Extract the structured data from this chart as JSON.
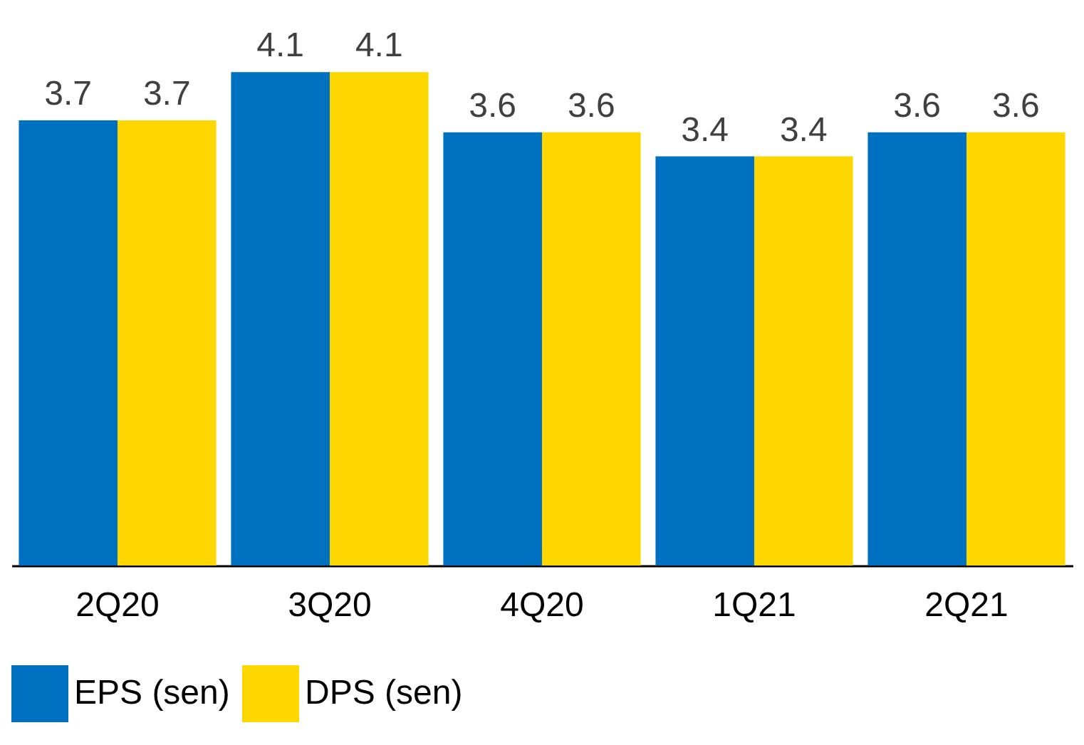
{
  "chart_data": {
    "type": "bar",
    "categories": [
      "2Q20",
      "3Q20",
      "4Q20",
      "1Q21",
      "2Q21"
    ],
    "series": [
      {
        "name": "EPS (sen)",
        "color": "#0070c0",
        "values": [
          3.7,
          4.1,
          3.6,
          3.4,
          3.6
        ]
      },
      {
        "name": "DPS (sen)",
        "color": "#ffd700",
        "values": [
          3.7,
          4.1,
          3.6,
          3.4,
          3.6
        ]
      }
    ],
    "ylim": [
      0,
      4.7
    ],
    "data_labels": true,
    "legend": "bottom"
  }
}
